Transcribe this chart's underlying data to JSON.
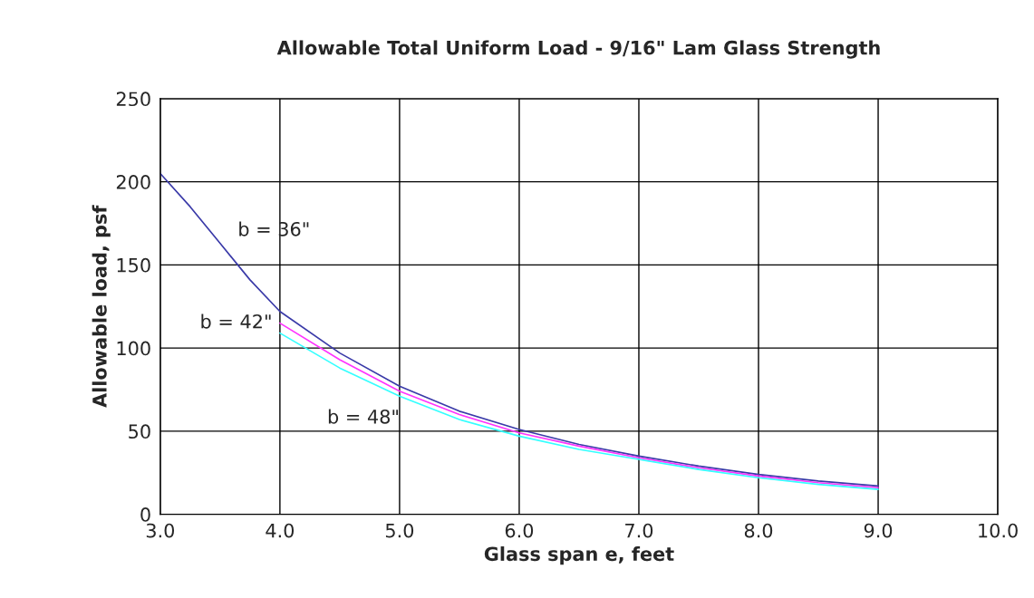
{
  "chart_data": {
    "type": "line",
    "title": "Allowable Total Uniform Load - 9/16\" Lam Glass Strength",
    "xlabel": "Glass span e, feet",
    "ylabel": "Allowable load, psf",
    "series": [
      {
        "name": "b = 36\"",
        "color": "#3a3aa8",
        "x": [
          3.0,
          3.25,
          3.5,
          3.75,
          4.0,
          4.5,
          5.0,
          5.5,
          6.0,
          6.5,
          7.0,
          7.5,
          8.0,
          8.5,
          9.0
        ],
        "values": [
          205,
          185,
          163,
          141,
          122,
          97,
          77,
          62,
          51,
          42,
          35,
          29,
          24,
          20,
          17
        ]
      },
      {
        "name": "b = 42\"",
        "color": "#ff33ff",
        "x": [
          4.0,
          4.5,
          5.0,
          5.5,
          6.0,
          6.5,
          7.0,
          7.5,
          8.0,
          8.5,
          9.0
        ],
        "values": [
          115,
          93,
          74,
          60,
          49,
          41,
          34,
          28,
          23,
          19,
          16
        ]
      },
      {
        "name": "b = 48\"",
        "color": "#33ffff",
        "x": [
          4.0,
          4.5,
          5.0,
          5.5,
          6.0,
          6.5,
          7.0,
          7.5,
          8.0,
          8.5,
          9.0
        ],
        "values": [
          109,
          88,
          71,
          57,
          47,
          39,
          33,
          27,
          22,
          18,
          15
        ]
      }
    ],
    "xlim": [
      3.0,
      10.0
    ],
    "xticks": [
      {
        "value": 3,
        "label": "3.0"
      },
      {
        "value": 4,
        "label": "4.0"
      },
      {
        "value": 5,
        "label": "5.0"
      },
      {
        "value": 6,
        "label": "6.0"
      },
      {
        "value": 7,
        "label": "7.0"
      },
      {
        "value": 8,
        "label": "8.0"
      },
      {
        "value": 9,
        "label": "9.0"
      },
      {
        "value": 10,
        "label": "10.0"
      }
    ],
    "ylim": [
      0,
      250
    ],
    "yticks": [
      0,
      50,
      100,
      150,
      200,
      250
    ],
    "grid": true,
    "legend": false,
    "marker": "none",
    "line_style": "solid"
  }
}
